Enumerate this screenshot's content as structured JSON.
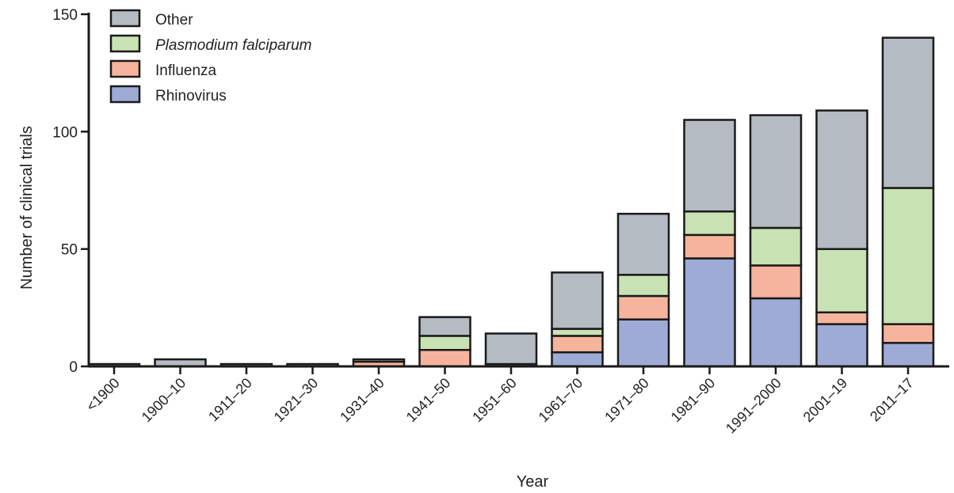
{
  "chart_data": {
    "type": "bar",
    "stacked": true,
    "xlabel": "Year",
    "ylabel": "Number of clinical trials",
    "ylim": [
      0,
      150
    ],
    "yticks": [
      0,
      50,
      100,
      150
    ],
    "categories": [
      "<1900",
      "1900–10",
      "1911–20",
      "1921–30",
      "1931–40",
      "1941–50",
      "1951–60",
      "1961–70",
      "1971–80",
      "1981–90",
      "1991–2000",
      "2001–19",
      "2011–17"
    ],
    "series": [
      {
        "name": "Rhinovirus",
        "color": "#9dabd6",
        "values": [
          0,
          0,
          0,
          0,
          0,
          0,
          1,
          6,
          20,
          46,
          29,
          18,
          10
        ]
      },
      {
        "name": "Influenza",
        "color": "#f6b49c",
        "values": [
          0,
          0,
          0,
          0,
          2,
          7,
          0,
          7,
          10,
          10,
          14,
          5,
          8
        ]
      },
      {
        "name": "Plasmodium falciparum",
        "color": "#c9e2b4",
        "values": [
          0,
          0,
          0,
          0,
          0,
          6,
          0,
          3,
          9,
          10,
          16,
          27,
          58
        ]
      },
      {
        "name": "Other",
        "color": "#b4bbc2",
        "values": [
          1,
          3,
          1,
          1,
          1,
          8,
          13,
          24,
          26,
          39,
          48,
          59,
          64
        ]
      }
    ],
    "legend": {
      "position": "top-left",
      "order": [
        "Other",
        "Plasmodium falciparum",
        "Influenza",
        "Rhinovirus"
      ],
      "italic": [
        "Plasmodium falciparum"
      ]
    },
    "grid": false
  }
}
